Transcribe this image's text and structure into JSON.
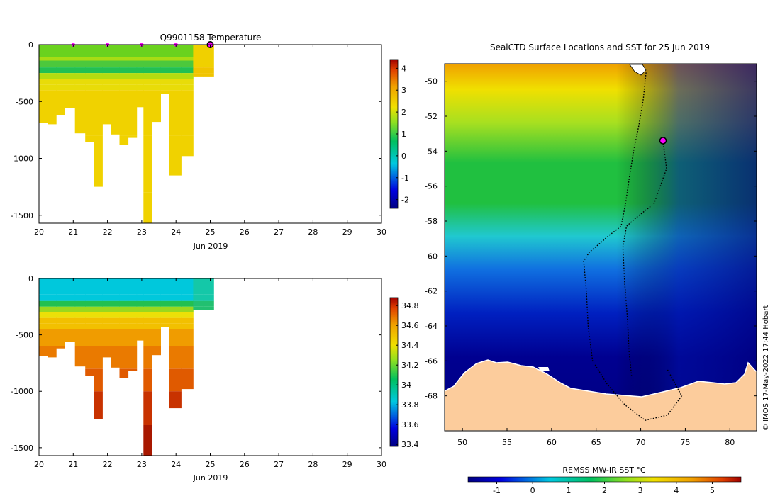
{
  "chart_data": [
    {
      "type": "heatmap",
      "title": "Q9901158  Temperature",
      "xlabel": "Jun 2019",
      "ylabel": "",
      "xlim": [
        20,
        30
      ],
      "ylim": [
        -1570,
        0
      ],
      "x_ticks": [
        "20",
        "21",
        "22",
        "23",
        "24",
        "25",
        "26",
        "27",
        "28",
        "29",
        "30"
      ],
      "y_ticks": [
        "0",
        "-500",
        "-1000",
        "-1500"
      ],
      "colorbar": {
        "min": -2.4,
        "max": 4.4,
        "ticks": [
          "4",
          "3",
          "2",
          "1",
          "0",
          "-1",
          "-2"
        ]
      },
      "surface_markers_day": [
        21.0,
        22.0,
        23.0,
        24.0
      ],
      "latest_marker_day": 25.0,
      "profiles": [
        {
          "day": 20.0,
          "depth": 690
        },
        {
          "day": 20.25,
          "depth": 700
        },
        {
          "day": 20.5,
          "depth": 620
        },
        {
          "day": 20.75,
          "depth": 560
        },
        {
          "day": 21.05,
          "depth": 780
        },
        {
          "day": 21.35,
          "depth": 860
        },
        {
          "day": 21.6,
          "depth": 1250
        },
        {
          "day": 21.85,
          "depth": 700
        },
        {
          "day": 22.1,
          "depth": 790
        },
        {
          "day": 22.35,
          "depth": 880
        },
        {
          "day": 22.6,
          "depth": 820
        },
        {
          "day": 22.85,
          "depth": 550
        },
        {
          "day": 23.05,
          "depth": 1570
        },
        {
          "day": 23.3,
          "depth": 680
        },
        {
          "day": 23.55,
          "depth": 430
        },
        {
          "day": 23.8,
          "depth": 1150
        },
        {
          "day": 24.15,
          "depth": 980
        },
        {
          "day": 24.5,
          "depth": 280
        },
        {
          "day": 24.8,
          "depth": 280
        }
      ]
    },
    {
      "type": "heatmap",
      "title": "",
      "xlabel": "Jun 2019",
      "ylabel": "",
      "xlim": [
        20,
        30
      ],
      "ylim": [
        -1570,
        0
      ],
      "x_ticks": [
        "20",
        "21",
        "22",
        "23",
        "24",
        "25",
        "26",
        "27",
        "28",
        "29",
        "30"
      ],
      "y_ticks": [
        "0",
        "-500",
        "-1000",
        "-1500"
      ],
      "colorbar": {
        "min": 33.38,
        "max": 34.88,
        "ticks": [
          "34.8",
          "34.6",
          "34.4",
          "34.2",
          "34",
          "33.8",
          "33.6",
          "33.4"
        ]
      },
      "profiles": [
        {
          "day": 20.0,
          "depth": 690
        },
        {
          "day": 20.25,
          "depth": 700
        },
        {
          "day": 20.5,
          "depth": 620
        },
        {
          "day": 20.75,
          "depth": 560
        },
        {
          "day": 21.05,
          "depth": 780
        },
        {
          "day": 21.35,
          "depth": 860
        },
        {
          "day": 21.6,
          "depth": 1250
        },
        {
          "day": 21.85,
          "depth": 700
        },
        {
          "day": 22.1,
          "depth": 790
        },
        {
          "day": 22.35,
          "depth": 880
        },
        {
          "day": 22.6,
          "depth": 820
        },
        {
          "day": 22.85,
          "depth": 550
        },
        {
          "day": 23.05,
          "depth": 1570
        },
        {
          "day": 23.3,
          "depth": 680
        },
        {
          "day": 23.55,
          "depth": 430
        },
        {
          "day": 23.8,
          "depth": 1150
        },
        {
          "day": 24.15,
          "depth": 980
        },
        {
          "day": 24.5,
          "depth": 280
        },
        {
          "day": 24.8,
          "depth": 280
        }
      ]
    },
    {
      "type": "heatmap",
      "title": "SealCTD Surface Locations and SST for 25 Jun 2019",
      "xlabel": "",
      "ylabel": "",
      "xlim": [
        48,
        83
      ],
      "ylim": [
        -70.0,
        -49.0
      ],
      "x_ticks": [
        "50",
        "55",
        "60",
        "65",
        "70",
        "75",
        "80"
      ],
      "y_ticks": [
        "-50",
        "-52",
        "-54",
        "-56",
        "-58",
        "-60",
        "-62",
        "-64",
        "-66",
        "-68"
      ],
      "colorbar": {
        "label": "REMSS MW-IR SST °C",
        "min": -1.8,
        "max": 5.8,
        "ticks": [
          "-1",
          "0",
          "1",
          "2",
          "3",
          "4",
          "5"
        ]
      },
      "track_points": [
        [
          70.6,
          -49.5
        ],
        [
          70.3,
          -51.0
        ],
        [
          69.8,
          -52.5
        ],
        [
          69.2,
          -54.0
        ],
        [
          68.7,
          -55.6
        ],
        [
          68.3,
          -57.0
        ],
        [
          67.8,
          -58.3
        ],
        [
          66.5,
          -58.8
        ],
        [
          64.2,
          -59.8
        ],
        [
          63.6,
          -60.3
        ],
        [
          63.9,
          -62.0
        ],
        [
          64.1,
          -64.0
        ],
        [
          64.6,
          -66.0
        ],
        [
          66.2,
          -67.3
        ],
        [
          68.2,
          -68.5
        ],
        [
          70.5,
          -69.4
        ],
        [
          73.0,
          -69.1
        ],
        [
          74.6,
          -68.0
        ],
        [
          73.0,
          -66.5
        ]
      ],
      "track2_points": [
        [
          72.5,
          -53.4
        ],
        [
          72.9,
          -55.0
        ],
        [
          71.5,
          -57.0
        ],
        [
          69.5,
          -57.8
        ],
        [
          68.4,
          -58.3
        ],
        [
          68.0,
          -59.5
        ],
        [
          68.2,
          -61.5
        ],
        [
          68.5,
          -63.5
        ],
        [
          68.7,
          -65.5
        ],
        [
          69.0,
          -67.0
        ]
      ],
      "current_location": [
        72.5,
        -53.4
      ],
      "copyright": "© IMOS 17-May-2022 17:44 Hobart"
    }
  ]
}
